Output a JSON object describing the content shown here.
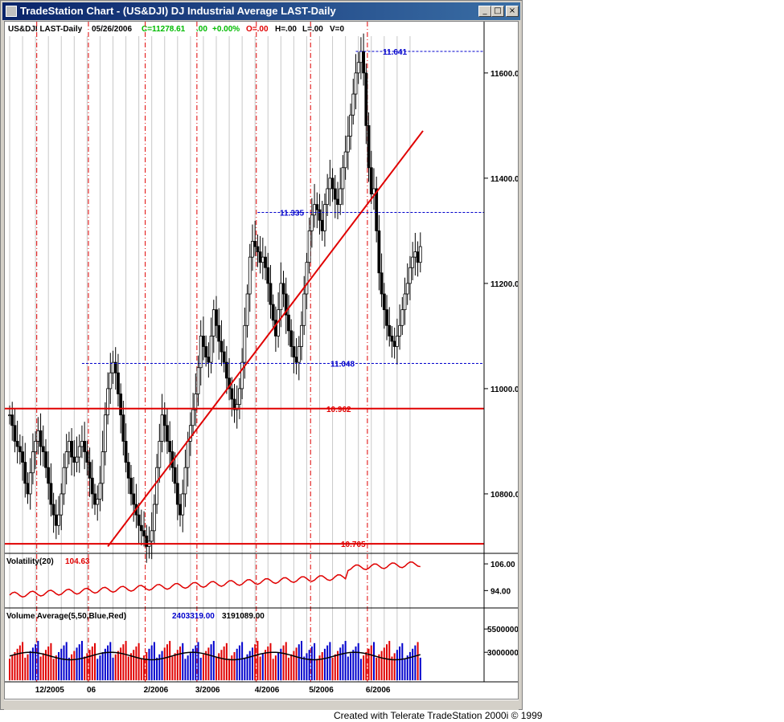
{
  "window": {
    "title": "TradeStation Chart - (US&DJI) DJ Industrial Average LAST-Daily",
    "buttons": [
      "_",
      "□",
      "×"
    ]
  },
  "header": {
    "symbol": "US&DJI LAST-Daily",
    "date": "05/26/2006",
    "close": "C=11278.61",
    "change": ".00",
    "pct": "+0.00%",
    "open": "O=.00",
    "high": "H=.00",
    "low": "L=.00",
    "vol": "V=0"
  },
  "credit": "Created with Telerate TradeStation 2000i © 1999",
  "colors": {
    "red": "#e00000",
    "blue": "#0000cc",
    "green": "#00bb00",
    "black": "#000000"
  },
  "chart_data": [
    {
      "type": "candlestick",
      "title": "US&DJI LAST-Daily",
      "ylim": [
        10690,
        11670
      ],
      "yticks": [
        10800,
        11000,
        11200,
        11400,
        11600
      ],
      "ytick_labels": [
        "10800.0",
        "11000.0",
        "11200.0",
        "11400.0",
        "11600.0"
      ],
      "x_labels": [
        "12/2005",
        "06",
        "2/2006",
        "3/2006",
        "4/2006",
        "5/2006",
        "6/2006"
      ],
      "x_label_bar_index": [
        8,
        28,
        50,
        70,
        93,
        114,
        136
      ],
      "bars_count": 160,
      "closes": [
        10950,
        10930,
        10900,
        10890,
        10880,
        10860,
        10820,
        10800,
        10840,
        10880,
        10900,
        10920,
        10890,
        10880,
        10850,
        10820,
        10780,
        10760,
        10740,
        10760,
        10800,
        10850,
        10880,
        10900,
        10870,
        10860,
        10870,
        10890,
        10900,
        10880,
        10860,
        10830,
        10800,
        10780,
        10790,
        10820,
        10880,
        10950,
        11000,
        11030,
        11050,
        11030,
        10990,
        10950,
        10900,
        10860,
        10830,
        10800,
        10780,
        10760,
        10740,
        10730,
        10720,
        10700,
        10710,
        10730,
        10780,
        10850,
        10900,
        10950,
        10930,
        10900,
        10880,
        10850,
        10820,
        10780,
        10760,
        10800,
        10850,
        10900,
        10930,
        10960,
        10990,
        11040,
        11100,
        11080,
        11060,
        11050,
        11100,
        11150,
        11120,
        11090,
        11070,
        11050,
        11020,
        11000,
        10980,
        10960,
        10970,
        11000,
        11050,
        11120,
        11180,
        11250,
        11280,
        11270,
        11260,
        11240,
        11250,
        11230,
        11200,
        11160,
        11130,
        11100,
        11150,
        11200,
        11180,
        11140,
        11110,
        11080,
        11060,
        11050,
        11080,
        11120,
        11180,
        11240,
        11300,
        11330,
        11350,
        11340,
        11320,
        11300,
        11350,
        11380,
        11400,
        11380,
        11360,
        11350,
        11380,
        11420,
        11450,
        11480,
        11520,
        11560,
        11600,
        11620,
        11641,
        11600,
        11500,
        11420,
        11370,
        11380,
        11300,
        11220,
        11180,
        11150,
        11120,
        11100,
        11090,
        11080,
        11100,
        11120,
        11150,
        11180,
        11200,
        11230,
        11250,
        11260,
        11240,
        11270
      ],
      "upper_hline": {
        "label": "11.641",
        "value": 11641,
        "style": "dashed-blue"
      },
      "mid_hline": {
        "label": "11.335",
        "value": 11335,
        "style": "dashed-blue"
      },
      "low_hline": {
        "label": "11.048",
        "value": 11048,
        "style": "dashed-blue"
      },
      "support_lines": [
        {
          "label": "10.962",
          "value": 10962,
          "style": "solid-red"
        },
        {
          "label": "10.705",
          "value": 10705,
          "style": "solid-red"
        }
      ],
      "trendline": {
        "from": [
          38,
          10700
        ],
        "to": [
          160,
          11490
        ],
        "color": "red"
      }
    },
    {
      "type": "line",
      "title": "Volatility(20)",
      "last_value": "104.63",
      "ylim": [
        88,
        110
      ],
      "yticks": [
        94,
        106
      ],
      "ytick_labels": [
        "94.00",
        "106.00"
      ]
    },
    {
      "type": "bar",
      "title": "Volume Average(5,50,Blue,Red)",
      "avg5": "2403319.00",
      "avg50": "3191089.00",
      "ylim": [
        0,
        7500000
      ],
      "yticks": [
        3000000,
        5500000
      ],
      "ytick_labels": [
        "3000000",
        "5500000"
      ]
    }
  ]
}
